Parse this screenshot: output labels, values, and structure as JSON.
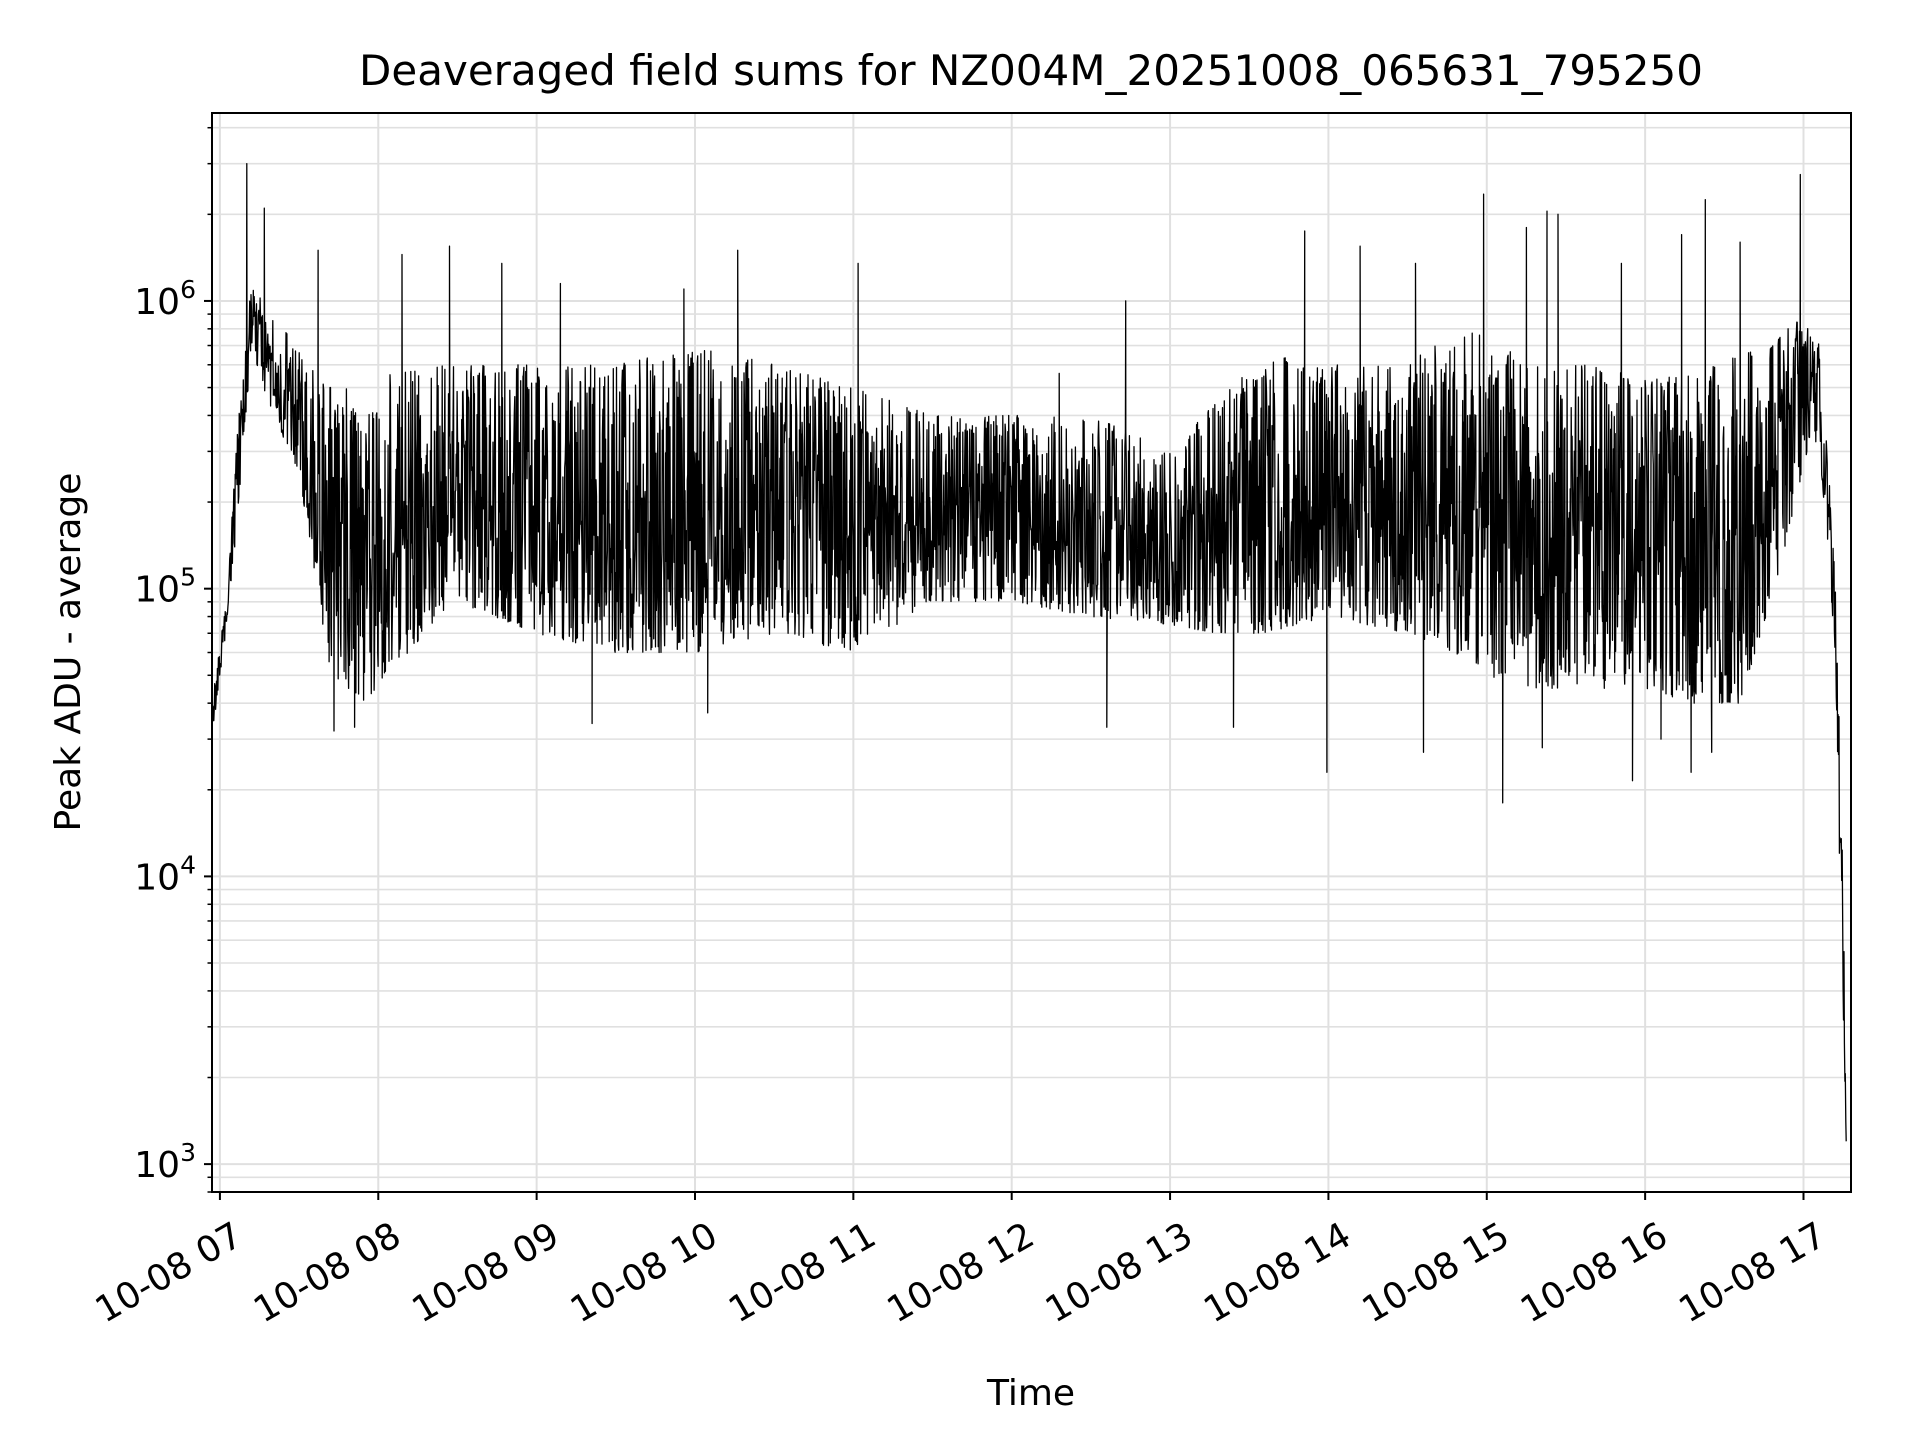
{
  "chart_data": {
    "type": "line",
    "title": "Deaveraged field sums for NZ004M_20251008_065631_795250",
    "xlabel": "Time",
    "ylabel": "Peak ADU - average",
    "yscale": "log",
    "ylim": [
      800,
      4500000
    ],
    "xlim_hours": [
      6.95,
      17.3
    ],
    "x_tick_labels": [
      "10-08 07",
      "10-08 08",
      "10-08 09",
      "10-08 10",
      "10-08 11",
      "10-08 12",
      "10-08 13",
      "10-08 14",
      "10-08 15",
      "10-08 16",
      "10-08 17"
    ],
    "x_tick_hours": [
      7,
      8,
      9,
      10,
      11,
      12,
      13,
      14,
      15,
      16,
      17
    ],
    "y_ticks": [
      {
        "value": 1000,
        "base": "10",
        "exp": "3"
      },
      {
        "value": 10000,
        "base": "10",
        "exp": "4"
      },
      {
        "value": 100000,
        "base": "10",
        "exp": "5"
      },
      {
        "value": 1000000,
        "base": "10",
        "exp": "6"
      }
    ],
    "grid": true,
    "line_color": "#000000",
    "grid_color": "#e0e0e0",
    "series": [
      {
        "name": "deaveraged field sum",
        "envelope_hours": [
          6.95,
          7.05,
          7.1,
          7.2,
          7.3,
          7.5,
          7.7,
          7.9,
          8.2,
          8.5,
          9.0,
          9.5,
          10.0,
          10.5,
          11.0,
          11.5,
          12.0,
          12.5,
          13.0,
          13.3,
          13.6,
          14.0,
          14.5,
          14.8,
          15.0,
          15.3,
          15.6,
          16.0,
          16.3,
          16.6,
          16.8,
          16.95,
          17.05,
          17.1,
          17.15,
          17.2,
          17.25,
          17.27
        ],
        "envelope_low": [
          30000,
          80000,
          150000,
          700000,
          450000,
          250000,
          50000,
          40000,
          60000,
          90000,
          70000,
          60000,
          60000,
          70000,
          60000,
          90000,
          90000,
          80000,
          75000,
          70000,
          70000,
          80000,
          70000,
          60000,
          50000,
          45000,
          45000,
          45000,
          40000,
          40000,
          90000,
          200000,
          350000,
          300000,
          150000,
          60000,
          3000,
          1200
        ],
        "envelope_high": [
          40000,
          100000,
          300000,
          1200000,
          900000,
          700000,
          500000,
          500000,
          600000,
          600000,
          600000,
          600000,
          700000,
          600000,
          500000,
          400000,
          400000,
          400000,
          300000,
          450000,
          650000,
          600000,
          600000,
          800000,
          750000,
          600000,
          600000,
          550000,
          550000,
          650000,
          700000,
          850000,
          800000,
          700000,
          300000,
          120000,
          10000,
          1200
        ],
        "spikes": [
          {
            "hour": 7.17,
            "value": 3000000
          },
          {
            "hour": 7.28,
            "value": 2100000
          },
          {
            "hour": 7.62,
            "value": 1500000
          },
          {
            "hour": 8.15,
            "value": 1450000
          },
          {
            "hour": 8.45,
            "value": 1550000
          },
          {
            "hour": 8.78,
            "value": 1350000
          },
          {
            "hour": 9.15,
            "value": 1150000
          },
          {
            "hour": 9.93,
            "value": 1100000
          },
          {
            "hour": 10.27,
            "value": 1500000
          },
          {
            "hour": 11.03,
            "value": 1350000
          },
          {
            "hour": 12.3,
            "value": 560000
          },
          {
            "hour": 12.72,
            "value": 1000000
          },
          {
            "hour": 13.85,
            "value": 1750000
          },
          {
            "hour": 14.2,
            "value": 1550000
          },
          {
            "hour": 14.55,
            "value": 1350000
          },
          {
            "hour": 14.98,
            "value": 2350000
          },
          {
            "hour": 15.25,
            "value": 1800000
          },
          {
            "hour": 15.38,
            "value": 2050000
          },
          {
            "hour": 15.45,
            "value": 2000000
          },
          {
            "hour": 15.85,
            "value": 1350000
          },
          {
            "hour": 16.23,
            "value": 1700000
          },
          {
            "hour": 16.38,
            "value": 2250000
          },
          {
            "hour": 16.6,
            "value": 1600000
          },
          {
            "hour": 16.98,
            "value": 2750000
          }
        ],
        "dips": [
          {
            "hour": 7.72,
            "value": 32000
          },
          {
            "hour": 7.85,
            "value": 33000
          },
          {
            "hour": 9.35,
            "value": 34000
          },
          {
            "hour": 10.08,
            "value": 37000
          },
          {
            "hour": 12.6,
            "value": 33000
          },
          {
            "hour": 13.4,
            "value": 33000
          },
          {
            "hour": 13.99,
            "value": 23000
          },
          {
            "hour": 14.6,
            "value": 27000
          },
          {
            "hour": 15.1,
            "value": 18000
          },
          {
            "hour": 15.35,
            "value": 28000
          },
          {
            "hour": 15.92,
            "value": 21500
          },
          {
            "hour": 16.1,
            "value": 30000
          },
          {
            "hour": 16.29,
            "value": 23000
          },
          {
            "hour": 16.42,
            "value": 27000
          }
        ]
      }
    ]
  }
}
